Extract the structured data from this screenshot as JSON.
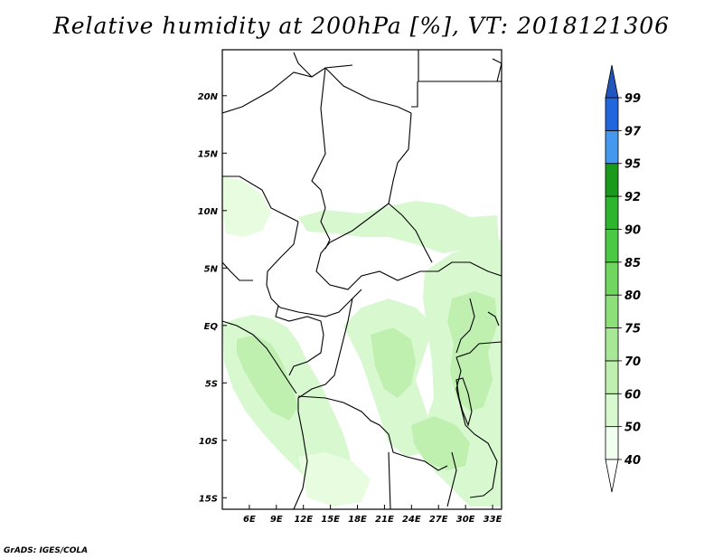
{
  "title": "Relative humidity at 200hPa [%], VT: 2018121306",
  "footer": "GrADS: IGES/COLA",
  "map": {
    "lon_range": [
      3,
      34
    ],
    "lat_range": [
      -16,
      24
    ],
    "x_ticks": [
      "6E",
      "9E",
      "12E",
      "15E",
      "18E",
      "21E",
      "24E",
      "27E",
      "30E",
      "33E"
    ],
    "y_ticks": [
      "20N",
      "15N",
      "10N",
      "5N",
      "EQ",
      "5S",
      "10S",
      "15S"
    ]
  },
  "colorbar": {
    "levels": [
      "40",
      "50",
      "60",
      "70",
      "75",
      "80",
      "85",
      "90",
      "92",
      "95",
      "97",
      "99"
    ],
    "colors": [
      "#f0fff0",
      "#d8f8d0",
      "#bff0b0",
      "#a6e896",
      "#8ddf7a",
      "#6fd660",
      "#4cc944",
      "#2db62d",
      "#1a9a1a",
      "#4499ee",
      "#2266dd",
      "#2255bb"
    ]
  }
}
